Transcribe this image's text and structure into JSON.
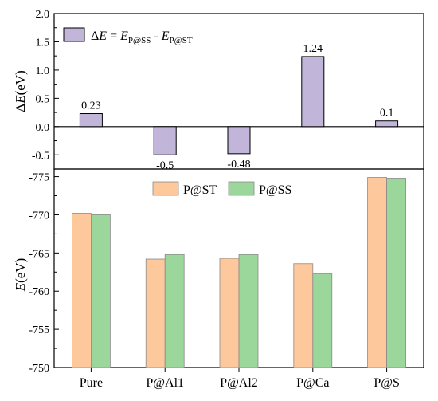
{
  "chart_data": [
    {
      "type": "bar",
      "ylabel": "ΔE(eV)",
      "ylim": [
        -0.75,
        2.0
      ],
      "yticks": [
        "2.0",
        "1.5",
        "1.0",
        "0.5",
        "0.0",
        "-0.5"
      ],
      "ytick_values": [
        2.0,
        1.5,
        1.0,
        0.5,
        0.0,
        -0.5
      ],
      "categories": [
        "Pure",
        "P@Al1",
        "P@Al2",
        "P@Ca",
        "P@S"
      ],
      "values": [
        0.23,
        -0.5,
        -0.48,
        1.24,
        0.1
      ],
      "data_labels": [
        "0.23",
        "-0.5",
        "-0.48",
        "1.24",
        "0.1"
      ],
      "legend": {
        "prefix": "ΔE = E",
        "sub1": "P@SS",
        "mid": " - E",
        "sub2": "P@ST",
        "placement": "top-left"
      },
      "colors": {
        "bar": "#c1b6d9",
        "edge": "#000000"
      }
    },
    {
      "type": "bar",
      "ylabel": "E(eV)",
      "ylim": [
        -750,
        -776
      ],
      "yticks": [
        "-775",
        "-770",
        "-765",
        "-760",
        "-755",
        "-750"
      ],
      "ytick_values": [
        -775,
        -770,
        -765,
        -760,
        -755,
        -750
      ],
      "categories": [
        "Pure",
        "P@Al1",
        "P@Al2",
        "P@Ca",
        "P@S"
      ],
      "series": [
        {
          "name": "P@ST",
          "color": "#fdc99c",
          "values": [
            -770.2,
            -764.2,
            -764.3,
            -763.6,
            -774.9
          ]
        },
        {
          "name": "P@SS",
          "color": "#9bd69a",
          "values": [
            -770.0,
            -764.8,
            -764.8,
            -762.3,
            -774.8
          ]
        }
      ],
      "legend_placement": "top-center"
    }
  ]
}
